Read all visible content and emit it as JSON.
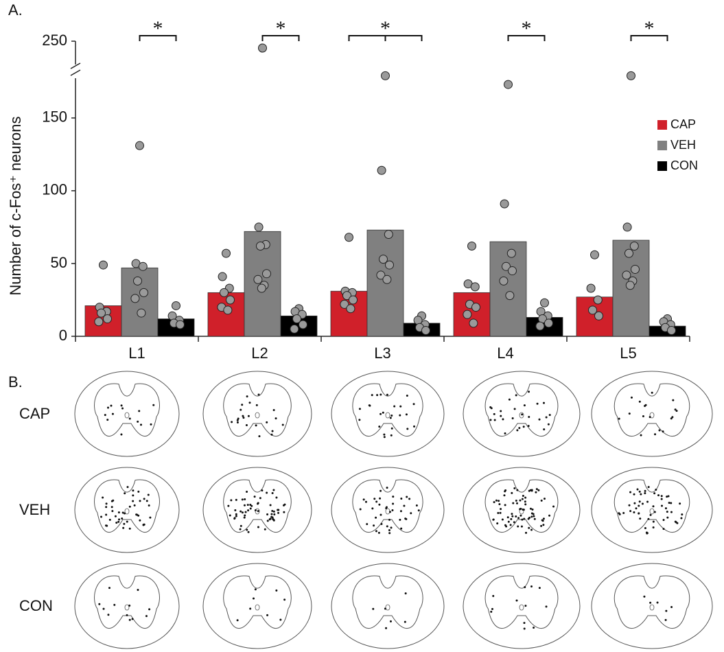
{
  "panel_labels": [
    "A.",
    "B."
  ],
  "chart_data": {
    "type": "bar",
    "ylabel": "Number of c-Fos⁺ neurons",
    "categories": [
      "L1",
      "L2",
      "L3",
      "L4",
      "L5"
    ],
    "ylim": [
      0,
      250
    ],
    "ybreak": [
      182,
      232
    ],
    "yticks": [
      0,
      50,
      100,
      150,
      250
    ],
    "legend": "right",
    "annotations": [
      "*",
      "*",
      "*",
      "*",
      "*"
    ],
    "series": [
      {
        "name": "CAP",
        "color": "#d0202a",
        "values": [
          21,
          30,
          31,
          30,
          27
        ],
        "points": [
          [
            49,
            20,
            17,
            16,
            12,
            10
          ],
          [
            57,
            41,
            33,
            30,
            25,
            20,
            18
          ],
          [
            68,
            31,
            30,
            28,
            25,
            22,
            19
          ],
          [
            62,
            36,
            34,
            22,
            20,
            15,
            9
          ],
          [
            56,
            33,
            25,
            18,
            14
          ]
        ]
      },
      {
        "name": "VEH",
        "color": "#808080",
        "values": [
          47,
          72,
          73,
          65,
          66
        ],
        "points": [
          [
            131,
            50,
            48,
            38,
            30,
            26,
            16
          ],
          [
            240,
            75,
            63,
            62,
            43,
            39,
            35,
            33
          ],
          [
            179,
            114,
            70,
            53,
            49,
            42,
            39
          ],
          [
            173,
            91,
            57,
            48,
            45,
            38,
            28
          ],
          [
            179,
            75,
            62,
            57,
            46,
            42,
            38,
            35
          ]
        ]
      },
      {
        "name": "CON",
        "color": "#000000",
        "values": [
          12,
          14,
          9,
          13,
          7
        ],
        "points": [
          [
            21,
            14,
            11,
            9,
            8
          ],
          [
            19,
            17,
            15,
            12,
            8,
            5
          ],
          [
            14,
            11,
            8,
            6,
            4
          ],
          [
            23,
            17,
            14,
            12,
            9,
            7
          ],
          [
            12,
            10,
            8,
            6,
            4
          ]
        ]
      }
    ]
  },
  "panel_b": {
    "rows": [
      "CAP",
      "VEH",
      "CON"
    ]
  }
}
